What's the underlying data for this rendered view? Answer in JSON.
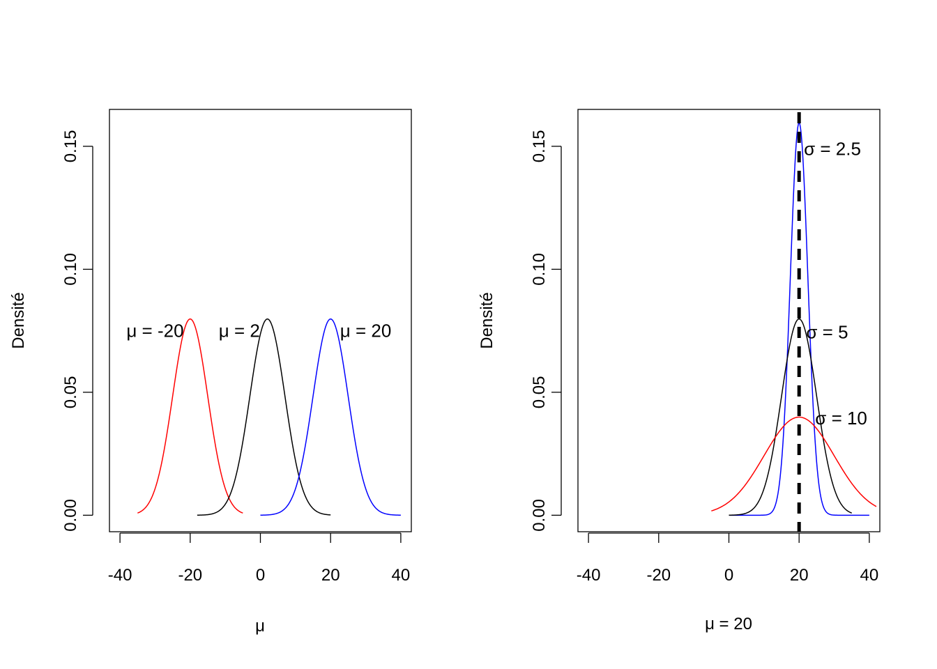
{
  "chart_data": [
    {
      "type": "line",
      "xlabel": "μ",
      "ylabel": "Densité",
      "xlim": [
        -43,
        43
      ],
      "ylim": [
        -0.0067,
        0.165
      ],
      "x_ticks": [
        -40,
        -20,
        0,
        20,
        40
      ],
      "y_ticks": [
        0.0,
        0.05,
        0.1,
        0.15
      ],
      "x_tick_labels": [
        "-40",
        "-20",
        "0",
        "20",
        "40"
      ],
      "y_tick_labels": [
        "0.00",
        "0.05",
        "0.10",
        "0.15"
      ],
      "grid": false,
      "series": [
        {
          "mean": -20,
          "sd": 5,
          "x_from": -35,
          "x_to": -5,
          "color": "#ff0000"
        },
        {
          "mean": 2,
          "sd": 5,
          "x_from": -18,
          "x_to": 20,
          "color": "#000000"
        },
        {
          "mean": 20,
          "sd": 5,
          "x_from": 0,
          "x_to": 40,
          "color": "#0000ff"
        }
      ],
      "annotations": [
        {
          "text": "μ = -20",
          "x": -30,
          "y": 0.075
        },
        {
          "text": "μ = 2",
          "x": -6,
          "y": 0.075
        },
        {
          "text": "μ = 20",
          "x": 30,
          "y": 0.075
        }
      ]
    },
    {
      "type": "line",
      "xlabel": "μ = 20",
      "ylabel": "Densité",
      "xlim": [
        -43,
        43
      ],
      "ylim": [
        -0.0067,
        0.165
      ],
      "x_ticks": [
        -40,
        -20,
        0,
        20,
        40
      ],
      "y_ticks": [
        0.0,
        0.05,
        0.1,
        0.15
      ],
      "x_tick_labels": [
        "-40",
        "-20",
        "0",
        "20",
        "40"
      ],
      "y_tick_labels": [
        "0.00",
        "0.05",
        "0.10",
        "0.15"
      ],
      "grid": false,
      "series": [
        {
          "mean": 20,
          "sd": 2.5,
          "x_from": 0,
          "x_to": 40,
          "color": "#0000ff"
        },
        {
          "mean": 20,
          "sd": 5,
          "x_from": 0,
          "x_to": 35,
          "color": "#000000"
        },
        {
          "mean": 20,
          "sd": 10,
          "x_from": -5,
          "x_to": 42,
          "color": "#ff0000"
        }
      ],
      "vline": {
        "x": 20,
        "style": "dashed",
        "color": "#000000"
      },
      "annotations": [
        {
          "text": "σ = 2.5",
          "x": 29.5,
          "y": 0.149
        },
        {
          "text": "σ = 5",
          "x": 28,
          "y": 0.0745
        },
        {
          "text": "σ = 10",
          "x": 32,
          "y": 0.0395
        }
      ]
    }
  ]
}
